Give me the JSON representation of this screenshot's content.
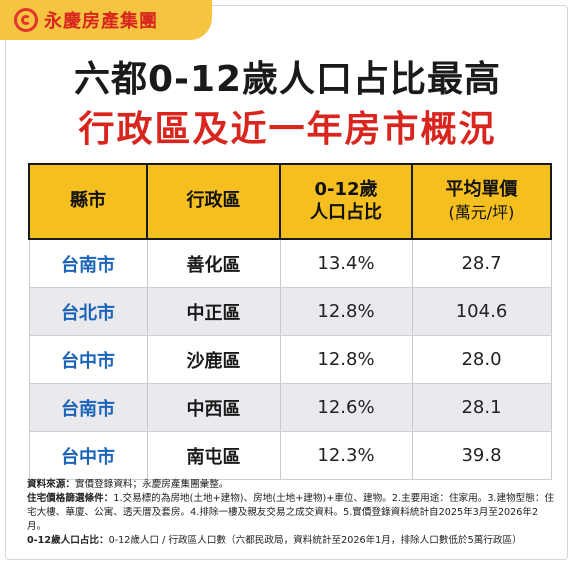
{
  "brand": {
    "name": "永慶房產集團"
  },
  "title_line1": "六都0-12歲人口占比最高",
  "title_line2": "行政區及近一年房市概況",
  "table": {
    "headers": [
      {
        "line1": "縣市",
        "line2": ""
      },
      {
        "line1": "行政區",
        "line2": ""
      },
      {
        "line1": "0-12歲",
        "line2": "人口占比"
      },
      {
        "line1": "平均單價",
        "line2": "(萬元/坪)"
      }
    ],
    "rows": [
      {
        "city": "台南市",
        "district": "善化區",
        "ratio": "13.4%",
        "price": "28.7"
      },
      {
        "city": "台北市",
        "district": "中正區",
        "ratio": "12.8%",
        "price": "104.6"
      },
      {
        "city": "台中市",
        "district": "沙鹿區",
        "ratio": "12.8%",
        "price": "28.0"
      },
      {
        "city": "台南市",
        "district": "中西區",
        "ratio": "12.6%",
        "price": "28.1"
      },
      {
        "city": "台中市",
        "district": "南屯區",
        "ratio": "12.3%",
        "price": "39.8"
      }
    ]
  },
  "notes": {
    "source_label": "資料來源：",
    "source_text": "實價登錄資料；永慶房產集團彙整。",
    "criteria_label": "住宅價格篩選條件：",
    "criteria_text": "1.交易標的為房地(土地+建物)、房地(土地+建物)+車位、建物。2.主要用途：住家用。3.建物型態：住宅大樓、華廈、公寓、透天厝及套房。4.排除一樓及親友交易之成交資料。5.實價登錄資料統計自2025年3月至2026年2月。",
    "ratio_label": "0-12歲人口占比：",
    "ratio_text": "0-12歲人口 / 行政區人口數（六都民政局，資料統計至2026年1月，排除人口數低於5萬行政區）"
  },
  "colors": {
    "brand_bg": "#f5c542",
    "brand_red": "#d8261e",
    "header_yellow": "#f5bf1f",
    "city_blue": "#1b63b8",
    "alt_row": "#e9e9ee"
  }
}
